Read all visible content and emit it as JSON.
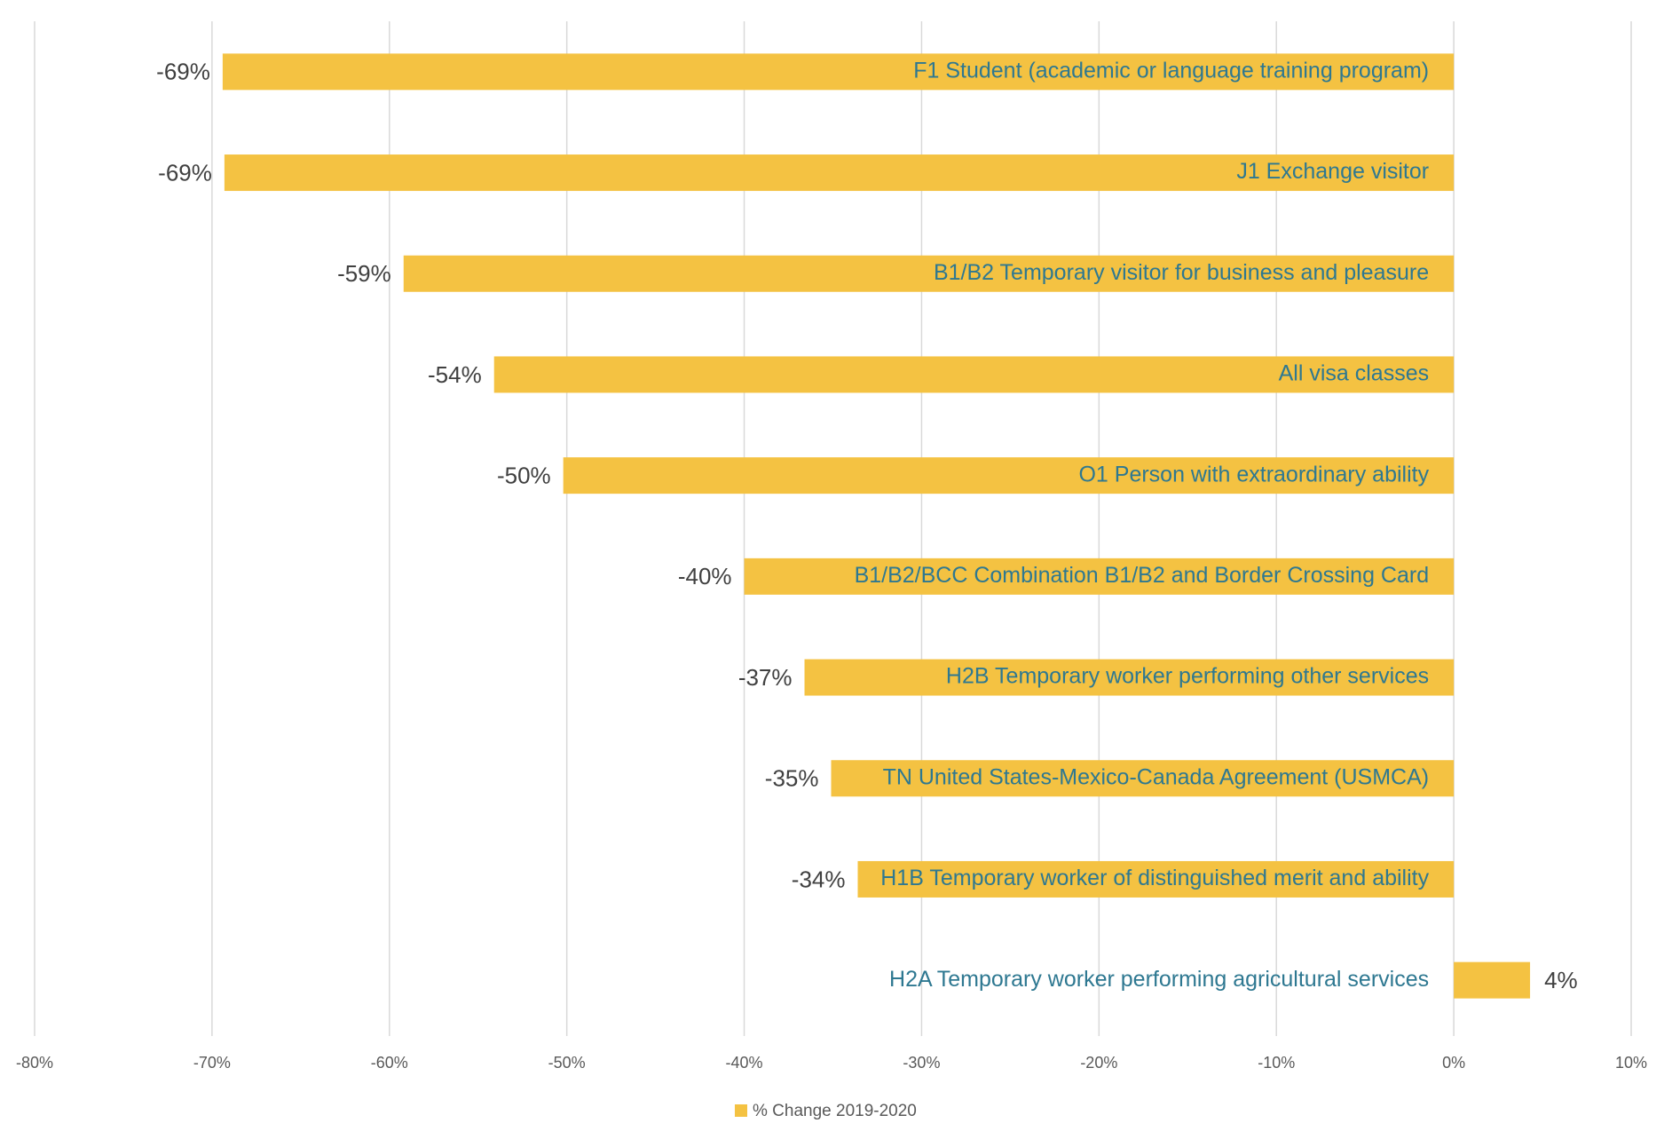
{
  "chart_data": {
    "type": "bar",
    "orientation": "horizontal",
    "categories": [
      "F1 Student (academic or language training program)",
      "J1 Exchange visitor",
      "B1/B2 Temporary visitor for business and pleasure",
      "All visa classes",
      "O1 Person with extraordinary ability",
      "B1/B2/BCC Combination B1/B2 and Border Crossing Card",
      "H2B Temporary worker performing other services",
      "TN United States-Mexico-Canada Agreement (USMCA)",
      "H1B Temporary worker of distinguished merit and ability",
      "H2A Temporary worker performing agricultural services"
    ],
    "series": [
      {
        "name": "% Change 2019-2020",
        "color": "#f4c242",
        "values": [
          -69.4,
          -69.3,
          -59.2,
          -54.1,
          -50.2,
          -40.0,
          -36.6,
          -35.1,
          -33.6,
          4.3
        ],
        "value_labels": [
          "-69%",
          "-69%",
          "-59%",
          "-54%",
          "-50%",
          "-40%",
          "-37%",
          "-35%",
          "-34%",
          "4%"
        ]
      }
    ],
    "xlim": [
      -80,
      10
    ],
    "xticks": [
      {
        "value": -80,
        "label": "-80%"
      },
      {
        "value": -70,
        "label": "-70%"
      },
      {
        "value": -60,
        "label": "-60%"
      },
      {
        "value": -50,
        "label": "-50%"
      },
      {
        "value": -40,
        "label": "-40%"
      },
      {
        "value": -30,
        "label": "-30%"
      },
      {
        "value": -20,
        "label": "-20%"
      },
      {
        "value": -10,
        "label": "-10%"
      },
      {
        "value": 0,
        "label": "0%"
      },
      {
        "value": 10,
        "label": "10%"
      }
    ],
    "grid": true,
    "legend": "bottom"
  }
}
